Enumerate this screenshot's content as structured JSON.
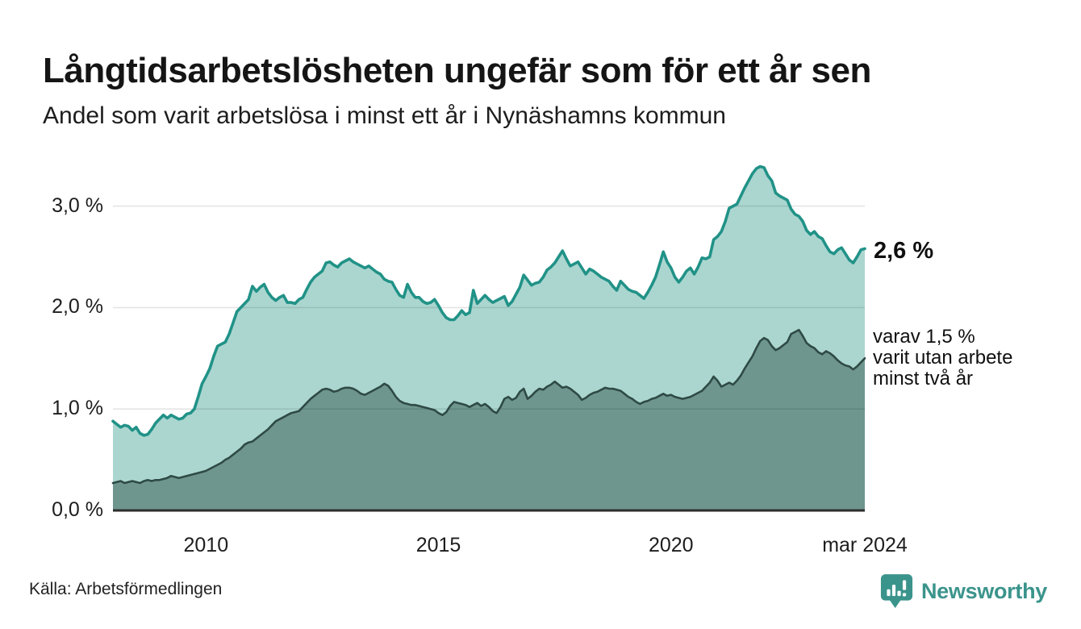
{
  "header": {
    "title": "Långtidsarbetslösheten ungefär som för ett år sen",
    "subtitle": "Andel som varit arbetslösa i minst ett år i Nynäshamns kommun"
  },
  "chart_data": {
    "type": "area",
    "unit": "%",
    "frequency": "monthly",
    "x_start": "2008-01",
    "x_end": "2024-03",
    "ylim": [
      0,
      3.45
    ],
    "grid": "horizontal",
    "colors": {
      "total_line": "#219287",
      "total_fill": "#abd6d0",
      "two_year_line": "#2f4a45",
      "two_year_fill": "#6e968f",
      "baseline": "#2e2e2e",
      "gridline_overlay": "rgba(0,0,0,0.10)"
    },
    "yticks": [
      {
        "value": 0,
        "label": "0,0 %"
      },
      {
        "value": 1,
        "label": "1,0 %"
      },
      {
        "value": 2,
        "label": "2,0 %"
      },
      {
        "value": 3,
        "label": "3,0 %"
      }
    ],
    "xticks": [
      {
        "index": 24,
        "label": "2010"
      },
      {
        "index": 84,
        "label": "2015"
      },
      {
        "index": 144,
        "label": "2020"
      },
      {
        "index": 194,
        "label": "mar 2024"
      }
    ],
    "series": [
      {
        "name": "Andel arbetslösa minst ett år",
        "color": "#219287",
        "fill": "#abd6d0",
        "latest_label": "2,6 %",
        "values": [
          0.88,
          0.85,
          0.82,
          0.84,
          0.83,
          0.79,
          0.82,
          0.76,
          0.74,
          0.75,
          0.8,
          0.86,
          0.9,
          0.94,
          0.91,
          0.94,
          0.92,
          0.9,
          0.91,
          0.95,
          0.96,
          1.0,
          1.12,
          1.25,
          1.32,
          1.4,
          1.52,
          1.62,
          1.64,
          1.66,
          1.74,
          1.85,
          1.96,
          2.0,
          2.04,
          2.08,
          2.21,
          2.16,
          2.2,
          2.23,
          2.15,
          2.1,
          2.07,
          2.1,
          2.12,
          2.05,
          2.05,
          2.04,
          2.08,
          2.1,
          2.18,
          2.25,
          2.3,
          2.33,
          2.36,
          2.44,
          2.45,
          2.42,
          2.4,
          2.44,
          2.46,
          2.48,
          2.45,
          2.43,
          2.41,
          2.39,
          2.41,
          2.38,
          2.35,
          2.33,
          2.28,
          2.26,
          2.25,
          2.18,
          2.12,
          2.1,
          2.23,
          2.15,
          2.1,
          2.1,
          2.06,
          2.04,
          2.05,
          2.08,
          2.02,
          1.95,
          1.9,
          1.88,
          1.88,
          1.92,
          1.97,
          1.93,
          1.95,
          2.17,
          2.04,
          2.08,
          2.12,
          2.08,
          2.05,
          2.07,
          2.09,
          2.11,
          2.02,
          2.06,
          2.13,
          2.2,
          2.32,
          2.27,
          2.22,
          2.24,
          2.25,
          2.3,
          2.37,
          2.4,
          2.44,
          2.5,
          2.56,
          2.48,
          2.41,
          2.43,
          2.45,
          2.39,
          2.33,
          2.38,
          2.36,
          2.33,
          2.3,
          2.28,
          2.26,
          2.21,
          2.17,
          2.26,
          2.22,
          2.18,
          2.16,
          2.15,
          2.12,
          2.09,
          2.15,
          2.22,
          2.3,
          2.42,
          2.55,
          2.45,
          2.39,
          2.3,
          2.25,
          2.3,
          2.36,
          2.39,
          2.33,
          2.4,
          2.49,
          2.48,
          2.5,
          2.67,
          2.7,
          2.75,
          2.85,
          2.98,
          3.0,
          3.02,
          3.1,
          3.18,
          3.25,
          3.32,
          3.37,
          3.39,
          3.38,
          3.3,
          3.25,
          3.13,
          3.1,
          3.08,
          3.06,
          2.97,
          2.92,
          2.9,
          2.85,
          2.76,
          2.72,
          2.75,
          2.7,
          2.68,
          2.61,
          2.55,
          2.53,
          2.57,
          2.59,
          2.53,
          2.47,
          2.44,
          2.5,
          2.57,
          2.58
        ]
      },
      {
        "name": "varav arbetslösa minst två år",
        "color": "#2f4a45",
        "fill": "#6e968f",
        "latest_label": "varav 1,5 %",
        "values": [
          0.27,
          0.28,
          0.29,
          0.27,
          0.28,
          0.29,
          0.28,
          0.27,
          0.29,
          0.3,
          0.29,
          0.3,
          0.3,
          0.31,
          0.32,
          0.34,
          0.33,
          0.32,
          0.33,
          0.34,
          0.35,
          0.36,
          0.37,
          0.38,
          0.39,
          0.41,
          0.43,
          0.45,
          0.47,
          0.5,
          0.52,
          0.55,
          0.58,
          0.61,
          0.65,
          0.67,
          0.68,
          0.71,
          0.74,
          0.77,
          0.8,
          0.84,
          0.88,
          0.9,
          0.92,
          0.94,
          0.96,
          0.97,
          0.98,
          1.02,
          1.06,
          1.1,
          1.13,
          1.16,
          1.19,
          1.2,
          1.19,
          1.17,
          1.18,
          1.2,
          1.21,
          1.21,
          1.2,
          1.18,
          1.15,
          1.14,
          1.16,
          1.18,
          1.2,
          1.22,
          1.25,
          1.23,
          1.18,
          1.12,
          1.08,
          1.06,
          1.05,
          1.04,
          1.04,
          1.03,
          1.02,
          1.01,
          1.0,
          0.99,
          0.96,
          0.94,
          0.97,
          1.03,
          1.07,
          1.06,
          1.05,
          1.04,
          1.02,
          1.04,
          1.06,
          1.03,
          1.05,
          1.02,
          0.98,
          0.96,
          1.02,
          1.1,
          1.12,
          1.09,
          1.11,
          1.17,
          1.2,
          1.1,
          1.13,
          1.17,
          1.2,
          1.19,
          1.22,
          1.24,
          1.27,
          1.24,
          1.21,
          1.22,
          1.2,
          1.17,
          1.14,
          1.09,
          1.11,
          1.14,
          1.16,
          1.17,
          1.19,
          1.21,
          1.2,
          1.2,
          1.19,
          1.18,
          1.15,
          1.12,
          1.1,
          1.07,
          1.05,
          1.07,
          1.08,
          1.1,
          1.11,
          1.13,
          1.15,
          1.13,
          1.14,
          1.12,
          1.11,
          1.1,
          1.11,
          1.12,
          1.14,
          1.16,
          1.18,
          1.22,
          1.26,
          1.32,
          1.28,
          1.22,
          1.24,
          1.26,
          1.24,
          1.28,
          1.33,
          1.4,
          1.46,
          1.52,
          1.6,
          1.67,
          1.7,
          1.68,
          1.62,
          1.58,
          1.6,
          1.63,
          1.66,
          1.74,
          1.76,
          1.78,
          1.72,
          1.65,
          1.62,
          1.6,
          1.56,
          1.54,
          1.57,
          1.55,
          1.52,
          1.48,
          1.45,
          1.43,
          1.42,
          1.39,
          1.42,
          1.46,
          1.5
        ]
      }
    ],
    "annotations": [
      {
        "text": "2,6 %",
        "series": 0
      },
      {
        "text": "varav 1,5 %\nvarit utan arbete\nminst två år",
        "series": 1
      }
    ]
  },
  "footer": {
    "source": "Källa: Arbetsförmedlingen",
    "brand": "Newsworthy"
  }
}
